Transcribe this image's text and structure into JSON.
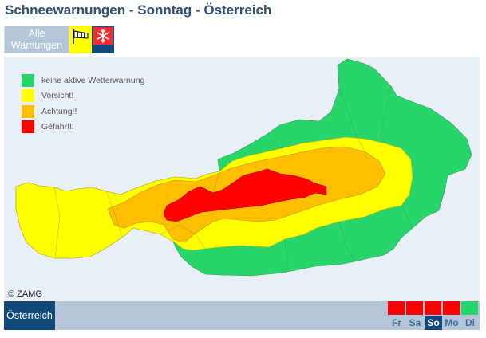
{
  "page": {
    "title": "Schneewarnungen - Sonntag - Österreich"
  },
  "tabs": {
    "all_warnings_line1": "Alle",
    "all_warnings_line2": "Warnungen",
    "wind_icon": "windsock-icon",
    "snow_icon": "snowflake-icon",
    "colors": {
      "wind": "#ffff00",
      "snow_active": "#ff2a2a",
      "snow_tab_bg": "#11497b"
    }
  },
  "legend": [
    {
      "label": "keine aktive Wetterwarnung",
      "color": "#27d66b"
    },
    {
      "label": "Vorsicht!",
      "color": "#ffff00"
    },
    {
      "label": "Achtung!!",
      "color": "#ffbf00"
    },
    {
      "label": "Gefahr!!!",
      "color": "#ff0000"
    }
  ],
  "map": {
    "copyright": "© ZAMG"
  },
  "footer": {
    "region": "Österreich",
    "days": [
      {
        "label": "Fr",
        "color": "#ff0000",
        "active": false
      },
      {
        "label": "Sa",
        "color": "#ff0000",
        "active": false
      },
      {
        "label": "So",
        "color": "#ff0000",
        "active": true
      },
      {
        "label": "Mo",
        "color": "#ff0000",
        "active": false
      },
      {
        "label": "Di",
        "color": "#27d66b",
        "active": false
      }
    ]
  }
}
